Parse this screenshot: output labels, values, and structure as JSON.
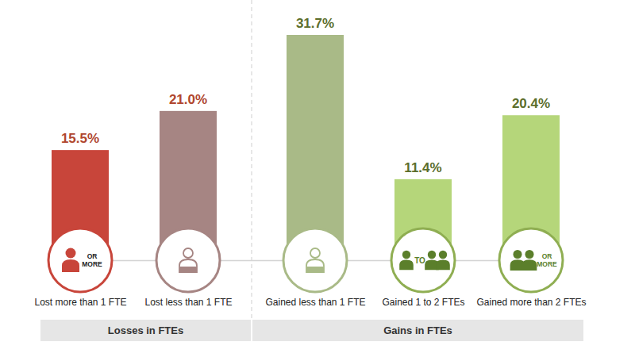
{
  "chart_data": {
    "type": "bar",
    "categories": [
      "Lost more than 1 FTE",
      "Lost less than 1 FTE",
      "Gained less than 1 FTE",
      "Gained 1 to 2 FTEs",
      "Gained more than 2 FTEs"
    ],
    "values": [
      15.5,
      21.0,
      31.7,
      11.4,
      20.4
    ],
    "value_labels": [
      "15.5%",
      "21.0%",
      "31.7%",
      "11.4%",
      "20.4%"
    ],
    "colors": [
      "#c8453a",
      "#a68583",
      "#a9ba87",
      "#b5d67a",
      "#b5d67a"
    ],
    "data_labels": true,
    "tick_labels": "x",
    "icon_labels": [
      "OR MORE",
      null,
      null,
      "TO",
      "OR MORE"
    ],
    "groups": [
      {
        "name": "Losses in FTEs",
        "categories": [
          "Lost more than 1 FTE",
          "Lost less than 1 FTE"
        ]
      },
      {
        "name": "Gains in FTEs",
        "categories": [
          "Gained less than 1 FTE",
          "Gained 1 to 2 FTEs",
          "Gained more than 2 FTEs"
        ]
      }
    ]
  }
}
